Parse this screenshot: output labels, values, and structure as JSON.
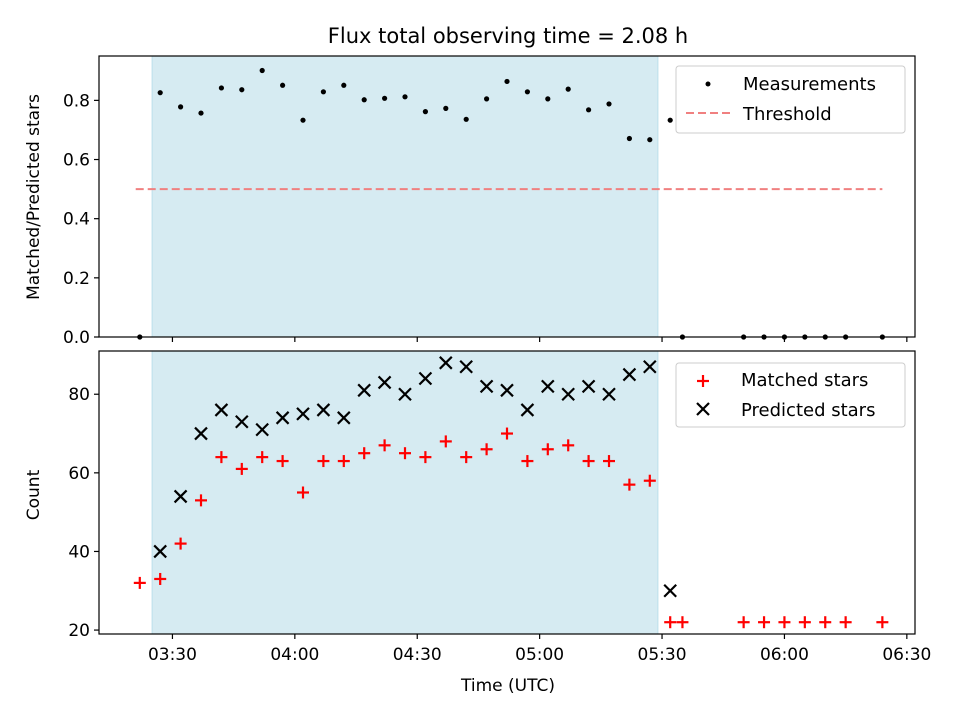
{
  "chart_data": [
    {
      "type": "scatter",
      "title": "Flux total observing time = 2.08 h",
      "xlabel": "",
      "ylabel": "Matched/Predicted stars",
      "ylim": [
        0,
        0.95
      ],
      "yticks": [
        0.0,
        0.2,
        0.4,
        0.6,
        0.8
      ],
      "ytick_labels": [
        "0.0",
        "0.2",
        "0.4",
        "0.6",
        "0.8"
      ],
      "xlim": [
        "03:12",
        "06:32"
      ],
      "xticks": [
        "03:30",
        "04:00",
        "04:30",
        "05:00",
        "05:30",
        "06:00",
        "06:30"
      ],
      "xtick_labels": [],
      "shaded_interval": [
        "03:25",
        "05:29"
      ],
      "legend_position": "top-right",
      "threshold": {
        "name": "Threshold",
        "value": 0.5,
        "x_range": [
          "03:21",
          "06:24"
        ],
        "color": "#f08080",
        "style": "dashed"
      },
      "series": [
        {
          "name": "Measurements",
          "marker": "dot",
          "color": "#000000",
          "x": [
            "03:22",
            "03:27",
            "03:32",
            "03:37",
            "03:42",
            "03:47",
            "03:52",
            "03:57",
            "04:02",
            "04:07",
            "04:12",
            "04:17",
            "04:22",
            "04:27",
            "04:32",
            "04:37",
            "04:42",
            "04:47",
            "04:52",
            "04:57",
            "05:02",
            "05:07",
            "05:12",
            "05:17",
            "05:22",
            "05:27",
            "05:32",
            "05:35",
            "05:50",
            "05:55",
            "05:60",
            "06:05",
            "06:10",
            "06:15",
            "06:24"
          ],
          "y": [
            0.0,
            0.826,
            0.778,
            0.757,
            0.842,
            0.836,
            0.901,
            0.851,
            0.733,
            0.829,
            0.851,
            0.802,
            0.807,
            0.812,
            0.762,
            0.773,
            0.736,
            0.805,
            0.864,
            0.829,
            0.805,
            0.838,
            0.768,
            0.788,
            0.671,
            0.667,
            0.733,
            0.0,
            0.0,
            0.0,
            0.0,
            0.0,
            0.0,
            0.0,
            0.0
          ]
        }
      ]
    },
    {
      "type": "scatter",
      "title": "",
      "xlabel": "Time (UTC)",
      "ylabel": "Count",
      "ylim": [
        19,
        91
      ],
      "yticks": [
        20,
        40,
        60,
        80
      ],
      "ytick_labels": [
        "20",
        "40",
        "60",
        "80"
      ],
      "xlim": [
        "03:12",
        "06:32"
      ],
      "xticks": [
        "03:30",
        "04:00",
        "04:30",
        "05:00",
        "05:30",
        "06:00",
        "06:30"
      ],
      "xtick_labels": [
        "03:30",
        "04:00",
        "04:30",
        "05:00",
        "05:30",
        "06:00",
        "06:30"
      ],
      "shaded_interval": [
        "03:25",
        "05:29"
      ],
      "legend_position": "top-right",
      "series": [
        {
          "name": "Matched stars",
          "marker": "plus",
          "color": "#ff0000",
          "x": [
            "03:22",
            "03:27",
            "03:32",
            "03:37",
            "03:42",
            "03:47",
            "03:52",
            "03:57",
            "04:02",
            "04:07",
            "04:12",
            "04:17",
            "04:22",
            "04:27",
            "04:32",
            "04:37",
            "04:42",
            "04:47",
            "04:52",
            "04:57",
            "05:02",
            "05:07",
            "05:12",
            "05:17",
            "05:22",
            "05:27",
            "05:32",
            "05:35",
            "05:50",
            "05:55",
            "06:00",
            "06:05",
            "06:10",
            "06:15",
            "06:24"
          ],
          "y": [
            32,
            33,
            42,
            53,
            64,
            61,
            64,
            63,
            55,
            63,
            63,
            65,
            67,
            65,
            64,
            68,
            64,
            66,
            70,
            63,
            66,
            67,
            63,
            63,
            57,
            58,
            22,
            22,
            22,
            22,
            22,
            22,
            22,
            22,
            22
          ]
        },
        {
          "name": "Predicted stars",
          "marker": "x",
          "color": "#000000",
          "x": [
            "03:27",
            "03:32",
            "03:37",
            "03:42",
            "03:47",
            "03:52",
            "03:57",
            "04:02",
            "04:07",
            "04:12",
            "04:17",
            "04:22",
            "04:27",
            "04:32",
            "04:37",
            "04:42",
            "04:47",
            "04:52",
            "04:57",
            "05:02",
            "05:07",
            "05:12",
            "05:17",
            "05:22",
            "05:27",
            "05:32"
          ],
          "y": [
            40,
            54,
            70,
            76,
            73,
            71,
            74,
            75,
            76,
            74,
            81,
            83,
            80,
            84,
            88,
            87,
            82,
            81,
            76,
            82,
            80,
            82,
            80,
            85,
            87,
            30
          ]
        }
      ]
    }
  ]
}
